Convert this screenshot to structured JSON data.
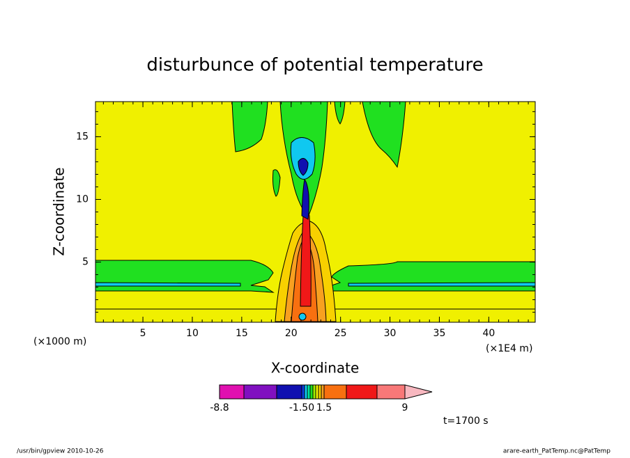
{
  "chart_data": {
    "type": "contour",
    "title": "disturbunce of potential temperature",
    "xlabel": "X-coordinate",
    "ylabel": "Z-coordinate",
    "xunit_left": "(×1000 m)",
    "xunit_right": "(×1E4 m)",
    "xlim": [
      0.2,
      44.7
    ],
    "ylim": [
      0.2,
      17.8
    ],
    "xticks": [
      5,
      10,
      15,
      20,
      25,
      30,
      35,
      40
    ],
    "yticks": [
      5,
      10,
      15
    ],
    "colorbar": {
      "colors": [
        "#e010b0",
        "#8010c0",
        "#1010b0",
        "#0a40e0",
        "#10c8f0",
        "#00e8a0",
        "#20e020",
        "#a0f000",
        "#f0f000",
        "#f8d000",
        "#f8a020",
        "#f87010",
        "#f01818",
        "#f87878",
        "#f8b8c0"
      ],
      "ticks": [
        -8.8,
        {
          "value": -1.5,
          "label": "-1.50"
        },
        1.5,
        9
      ]
    },
    "time_label": "t=1700 s",
    "footer_left": "/usr/bin/gpview   2010-10-26",
    "footer_right": "arare-earth_PatTemp.nc@PatTemp"
  }
}
